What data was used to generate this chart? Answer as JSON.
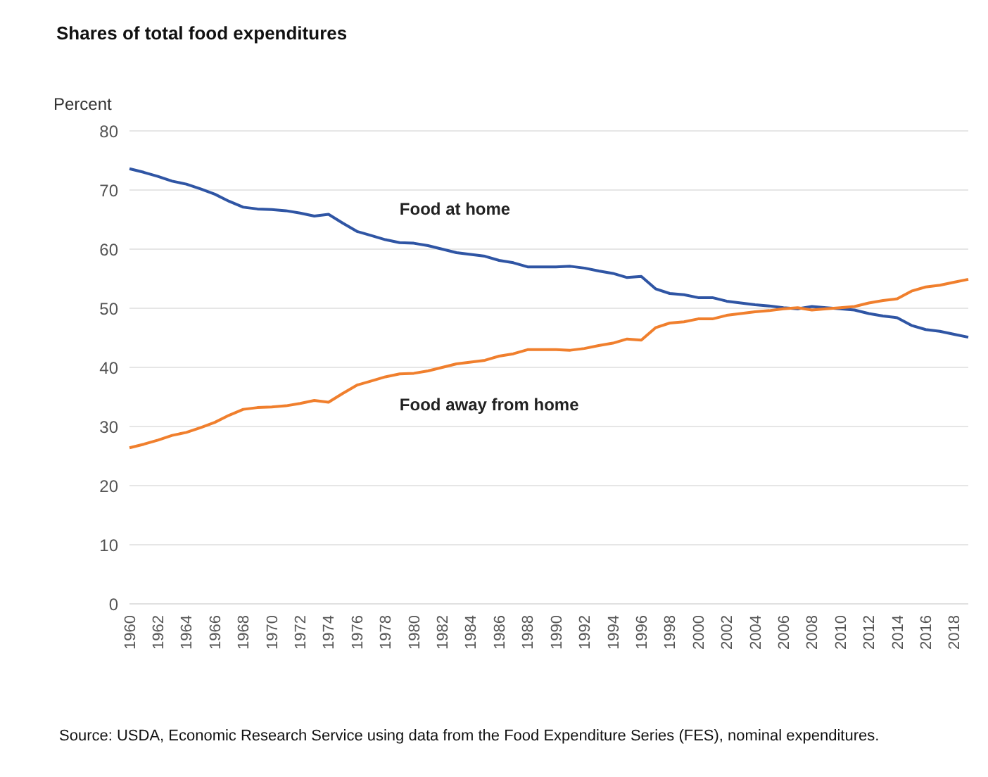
{
  "chart_data": {
    "type": "line",
    "title": "Shares of total food expenditures",
    "ylabel": "Percent",
    "categories": [
      "1960",
      null,
      "1962",
      null,
      "1964",
      null,
      "1966",
      null,
      "1968",
      null,
      "1970",
      null,
      "1972",
      null,
      "1974",
      null,
      "1976",
      null,
      "1978",
      null,
      "1980",
      null,
      "1982",
      null,
      "1984",
      null,
      "1986",
      null,
      "1988",
      null,
      "1990",
      null,
      "1992",
      null,
      "1994",
      null,
      "1996",
      null,
      "1998",
      null,
      "2000",
      null,
      "2002",
      null,
      "2004",
      null,
      "2006",
      null,
      "2008",
      null,
      "2010",
      null,
      "2012",
      null,
      "2014",
      null,
      "2016",
      null,
      "2018",
      null
    ],
    "series": [
      {
        "name": "Food at home",
        "color": "#2f55a4",
        "values": [
          73.6,
          73,
          72.3,
          71.5,
          71,
          70.2,
          69.3,
          68.1,
          67.1,
          66.8,
          66.7,
          66.5,
          66.1,
          65.6,
          65.9,
          64.4,
          63,
          62.3,
          61.6,
          61.1,
          61,
          60.6,
          60,
          59.4,
          59.1,
          58.8,
          58.1,
          57.7,
          57,
          57,
          57,
          57.1,
          56.8,
          56.3,
          55.9,
          55.2,
          55.4,
          53.3,
          52.5,
          52.3,
          51.8,
          51.8,
          51.2,
          50.9,
          50.6,
          50.4,
          50.1,
          49.9,
          50.3,
          50.1,
          49.9,
          49.7,
          49.1,
          48.7,
          48.4,
          47.1,
          46.4,
          46.1,
          45.6,
          45.1
        ]
      },
      {
        "name": "Food away from home",
        "color": "#f07f2d",
        "values": [
          26.4,
          27,
          27.7,
          28.5,
          29,
          29.8,
          30.7,
          31.9,
          32.9,
          33.2,
          33.3,
          33.5,
          33.9,
          34.4,
          34.1,
          35.6,
          37,
          37.7,
          38.4,
          38.9,
          39,
          39.4,
          40,
          40.6,
          40.9,
          41.2,
          41.9,
          42.3,
          43,
          43,
          43,
          42.9,
          43.2,
          43.7,
          44.1,
          44.8,
          44.6,
          46.7,
          47.5,
          47.7,
          48.2,
          48.2,
          48.8,
          49.1,
          49.4,
          49.6,
          49.9,
          50.1,
          49.7,
          49.9,
          50.1,
          50.3,
          50.9,
          51.3,
          51.6,
          52.9,
          53.6,
          53.9,
          54.4,
          54.9
        ]
      }
    ],
    "ylim": [
      0,
      80
    ],
    "yticks": [
      0,
      10,
      20,
      30,
      40,
      50,
      60,
      70,
      80
    ],
    "grid": "y",
    "legend": false,
    "marker": "none",
    "line_style": "solid",
    "annotations": [
      "Source: USDA, Economic Research Service using data from the Food Expenditure Series (FES), nominal expenditures."
    ]
  }
}
